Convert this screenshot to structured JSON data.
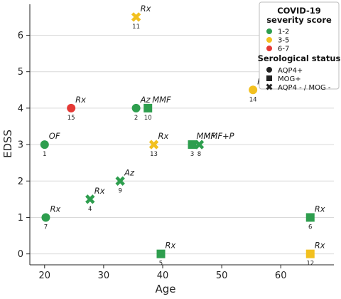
{
  "chart_data": {
    "type": "scatter",
    "title": "",
    "xlabel": "Age",
    "ylabel": "EDSS",
    "xlim": [
      17.5,
      69
    ],
    "ylim": [
      -0.3,
      6.85
    ],
    "xticks": [
      20,
      30,
      40,
      50,
      60
    ],
    "yticks": [
      0,
      1,
      2,
      3,
      4,
      5,
      6
    ],
    "grid": "horizontal",
    "legend_position": "top-right",
    "legend": {
      "covid_title": "COVID-19\nseverity score",
      "covid_items": [
        {
          "label": "1-2",
          "color": "#2e9e4e"
        },
        {
          "label": "3-5",
          "color": "#f2c01f"
        },
        {
          "label": "6-7",
          "color": "#e53935"
        }
      ],
      "sero_title": "Serological status",
      "sero_items": [
        {
          "label": "AQP4+",
          "marker": "circle"
        },
        {
          "label": "MOG+",
          "marker": "square"
        },
        {
          "label": "AQP4 - / MOG -",
          "marker": "x"
        }
      ]
    },
    "points": [
      {
        "id": "1",
        "age": 20,
        "edss": 3,
        "severity": "1-2",
        "serology": "AQP4+",
        "treatment": "OF"
      },
      {
        "id": "2",
        "age": 35.5,
        "edss": 4,
        "severity": "1-2",
        "serology": "AQP4+",
        "treatment": "Az"
      },
      {
        "id": "3",
        "age": 45,
        "edss": 3,
        "severity": "1-2",
        "serology": "MOG+",
        "treatment": "MMF"
      },
      {
        "id": "4",
        "age": 27.7,
        "edss": 1.5,
        "severity": "1-2",
        "serology": "AQP4 - / MOG -",
        "treatment": "Rx"
      },
      {
        "id": "5",
        "age": 39.7,
        "edss": 0,
        "severity": "1-2",
        "serology": "MOG+",
        "treatment": "Rx"
      },
      {
        "id": "6",
        "age": 65,
        "edss": 1,
        "severity": "1-2",
        "serology": "MOG+",
        "treatment": "Rx"
      },
      {
        "id": "7",
        "age": 20.2,
        "edss": 1,
        "severity": "1-2",
        "serology": "AQP4+",
        "treatment": "Rx"
      },
      {
        "id": "8",
        "age": 46.2,
        "edss": 3,
        "severity": "1-2",
        "serology": "AQP4 - / MOG -",
        "treatment": "MMF+P"
      },
      {
        "id": "9",
        "age": 32.8,
        "edss": 2,
        "severity": "1-2",
        "serology": "AQP4 - / MOG -",
        "treatment": "Az"
      },
      {
        "id": "10",
        "age": 37.5,
        "edss": 4,
        "severity": "1-2",
        "serology": "MOG+",
        "treatment": "MMF"
      },
      {
        "id": "11",
        "age": 35.5,
        "edss": 6.5,
        "severity": "3-5",
        "serology": "AQP4 - / MOG -",
        "treatment": "Rx"
      },
      {
        "id": "12",
        "age": 65,
        "edss": 0,
        "severity": "3-5",
        "serology": "MOG+",
        "treatment": "Rx"
      },
      {
        "id": "13",
        "age": 38.5,
        "edss": 3,
        "severity": "3-5",
        "serology": "AQP4 - / MOG -",
        "treatment": "Rx"
      },
      {
        "id": "14",
        "age": 55.3,
        "edss": 4.5,
        "severity": "3-5",
        "serology": "AQP4+",
        "treatment": "Rx"
      },
      {
        "id": "15",
        "age": 24.5,
        "edss": 4,
        "severity": "6-7",
        "serology": "AQP4+",
        "treatment": "Rx"
      }
    ]
  }
}
